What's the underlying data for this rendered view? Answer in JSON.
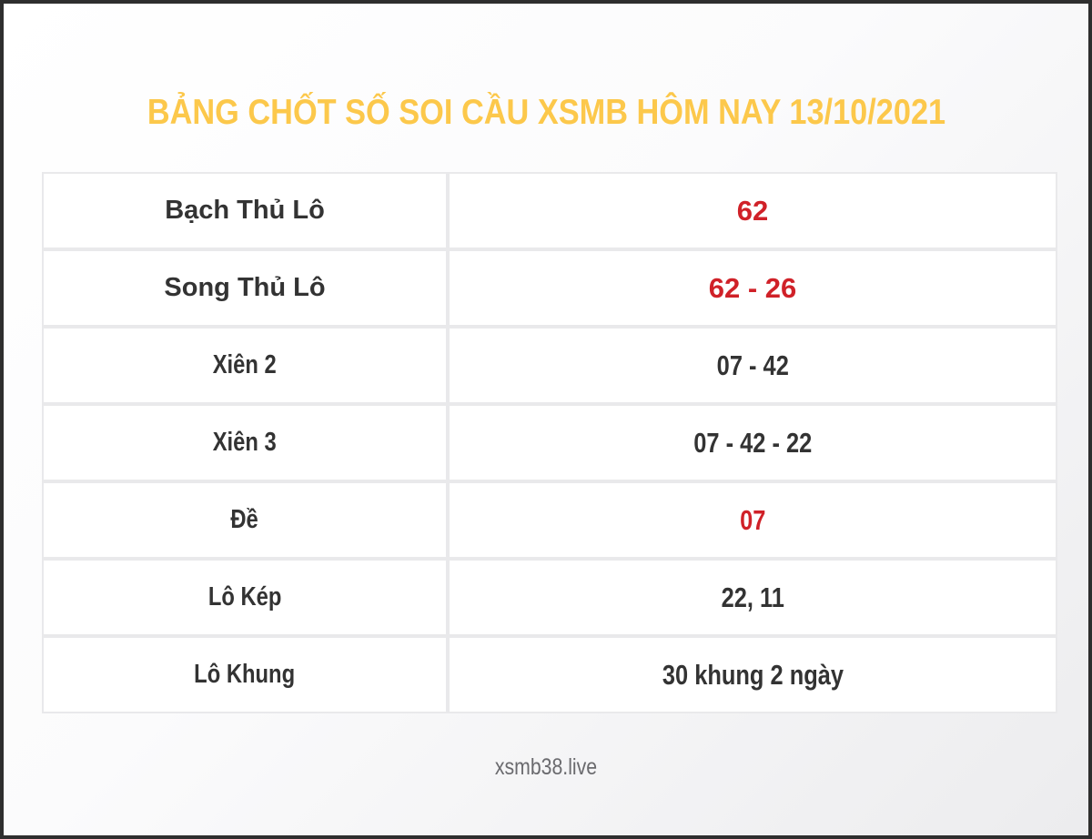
{
  "title": "BẢNG CHỐT SỐ SOI CẦU XSMB HÔM NAY 13/10/2021",
  "footer": {
    "site": "xsmb38.live"
  },
  "colors": {
    "title_yellow": "#fcc84b",
    "value_red": "#d02128",
    "text_dark": "#333333",
    "cell_border": "#e9e9eb",
    "frame_border": "#2e2e2e",
    "background_gradient_start": "#ffffff",
    "background_gradient_end": "#ececee",
    "footer_gray": "#6a6a6e"
  },
  "chart_data": {
    "type": "table",
    "title": "BẢNG CHỐT SỐ SOI CẦU XSMB HÔM NAY 13/10/2021",
    "columns": [
      "label",
      "value"
    ],
    "rows": [
      {
        "label": "Bạch Thủ Lô",
        "value": "62",
        "emphasis": "red",
        "label_class": "cell-text label-text",
        "value_class": "cell-text value-text red"
      },
      {
        "label": "Song Thủ Lô",
        "value": "62 - 26",
        "emphasis": "red",
        "label_class": "cell-text label-text",
        "value_class": "cell-text value-text red"
      },
      {
        "label": "Xiên 2",
        "value": "07 - 42",
        "emphasis": "dark",
        "label_class": "cell-text label-text cond",
        "value_class": "cell-text value-text cond"
      },
      {
        "label": "Xiên 3",
        "value": "07 - 42 - 22",
        "emphasis": "dark",
        "label_class": "cell-text label-text cond",
        "value_class": "cell-text value-text cond"
      },
      {
        "label": "Đề",
        "value": "07",
        "emphasis": "red",
        "label_class": "cell-text label-text cond",
        "value_class": "cell-text value-text red cond"
      },
      {
        "label": "Lô Kép",
        "value": "22, 11",
        "emphasis": "dark",
        "label_class": "cell-text label-text cond",
        "value_class": "cell-text value-text cond"
      },
      {
        "label": "Lô Khung",
        "value": "30 khung 2 ngày",
        "emphasis": "dark",
        "label_class": "cell-text label-text cond",
        "value_class": "cell-text value-text cond"
      }
    ]
  }
}
